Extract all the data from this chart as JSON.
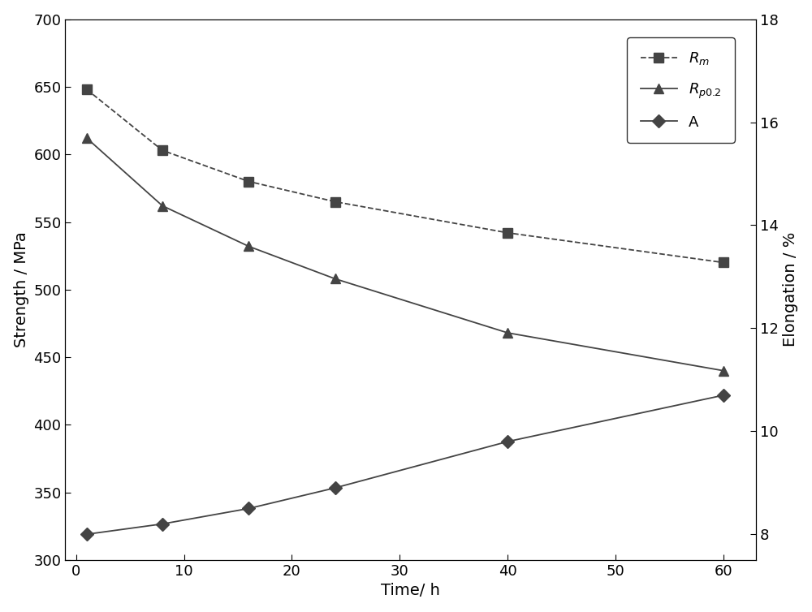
{
  "time": [
    1,
    8,
    16,
    24,
    40,
    60
  ],
  "Rm": [
    648,
    603,
    580,
    565,
    542,
    520
  ],
  "Rp02": [
    612,
    562,
    532,
    508,
    468,
    440
  ],
  "A": [
    8.0,
    8.2,
    8.5,
    8.9,
    9.8,
    10.7
  ],
  "left_ylim": [
    300,
    700
  ],
  "left_yticks": [
    300,
    350,
    400,
    450,
    500,
    550,
    600,
    650,
    700
  ],
  "right_ylim": [
    7.5,
    17.75
  ],
  "right_yticks": [
    8,
    10,
    12,
    14,
    16,
    18
  ],
  "xlim": [
    -1,
    63
  ],
  "xticks": [
    0,
    10,
    20,
    30,
    40,
    50,
    60
  ],
  "xlabel": "Time/ h",
  "ylabel_left": "Strength / MPa",
  "ylabel_right": "Elongation / %",
  "line_color": "#444444",
  "bg_color": "#ffffff",
  "plot_bg_color": "#ffffff",
  "legend_Rm": "$R_{m}$",
  "legend_Rp02": "$R_{p0.2}$",
  "legend_A": "A",
  "title_fontsize": 14,
  "label_fontsize": 14,
  "tick_fontsize": 13,
  "legend_fontsize": 13
}
